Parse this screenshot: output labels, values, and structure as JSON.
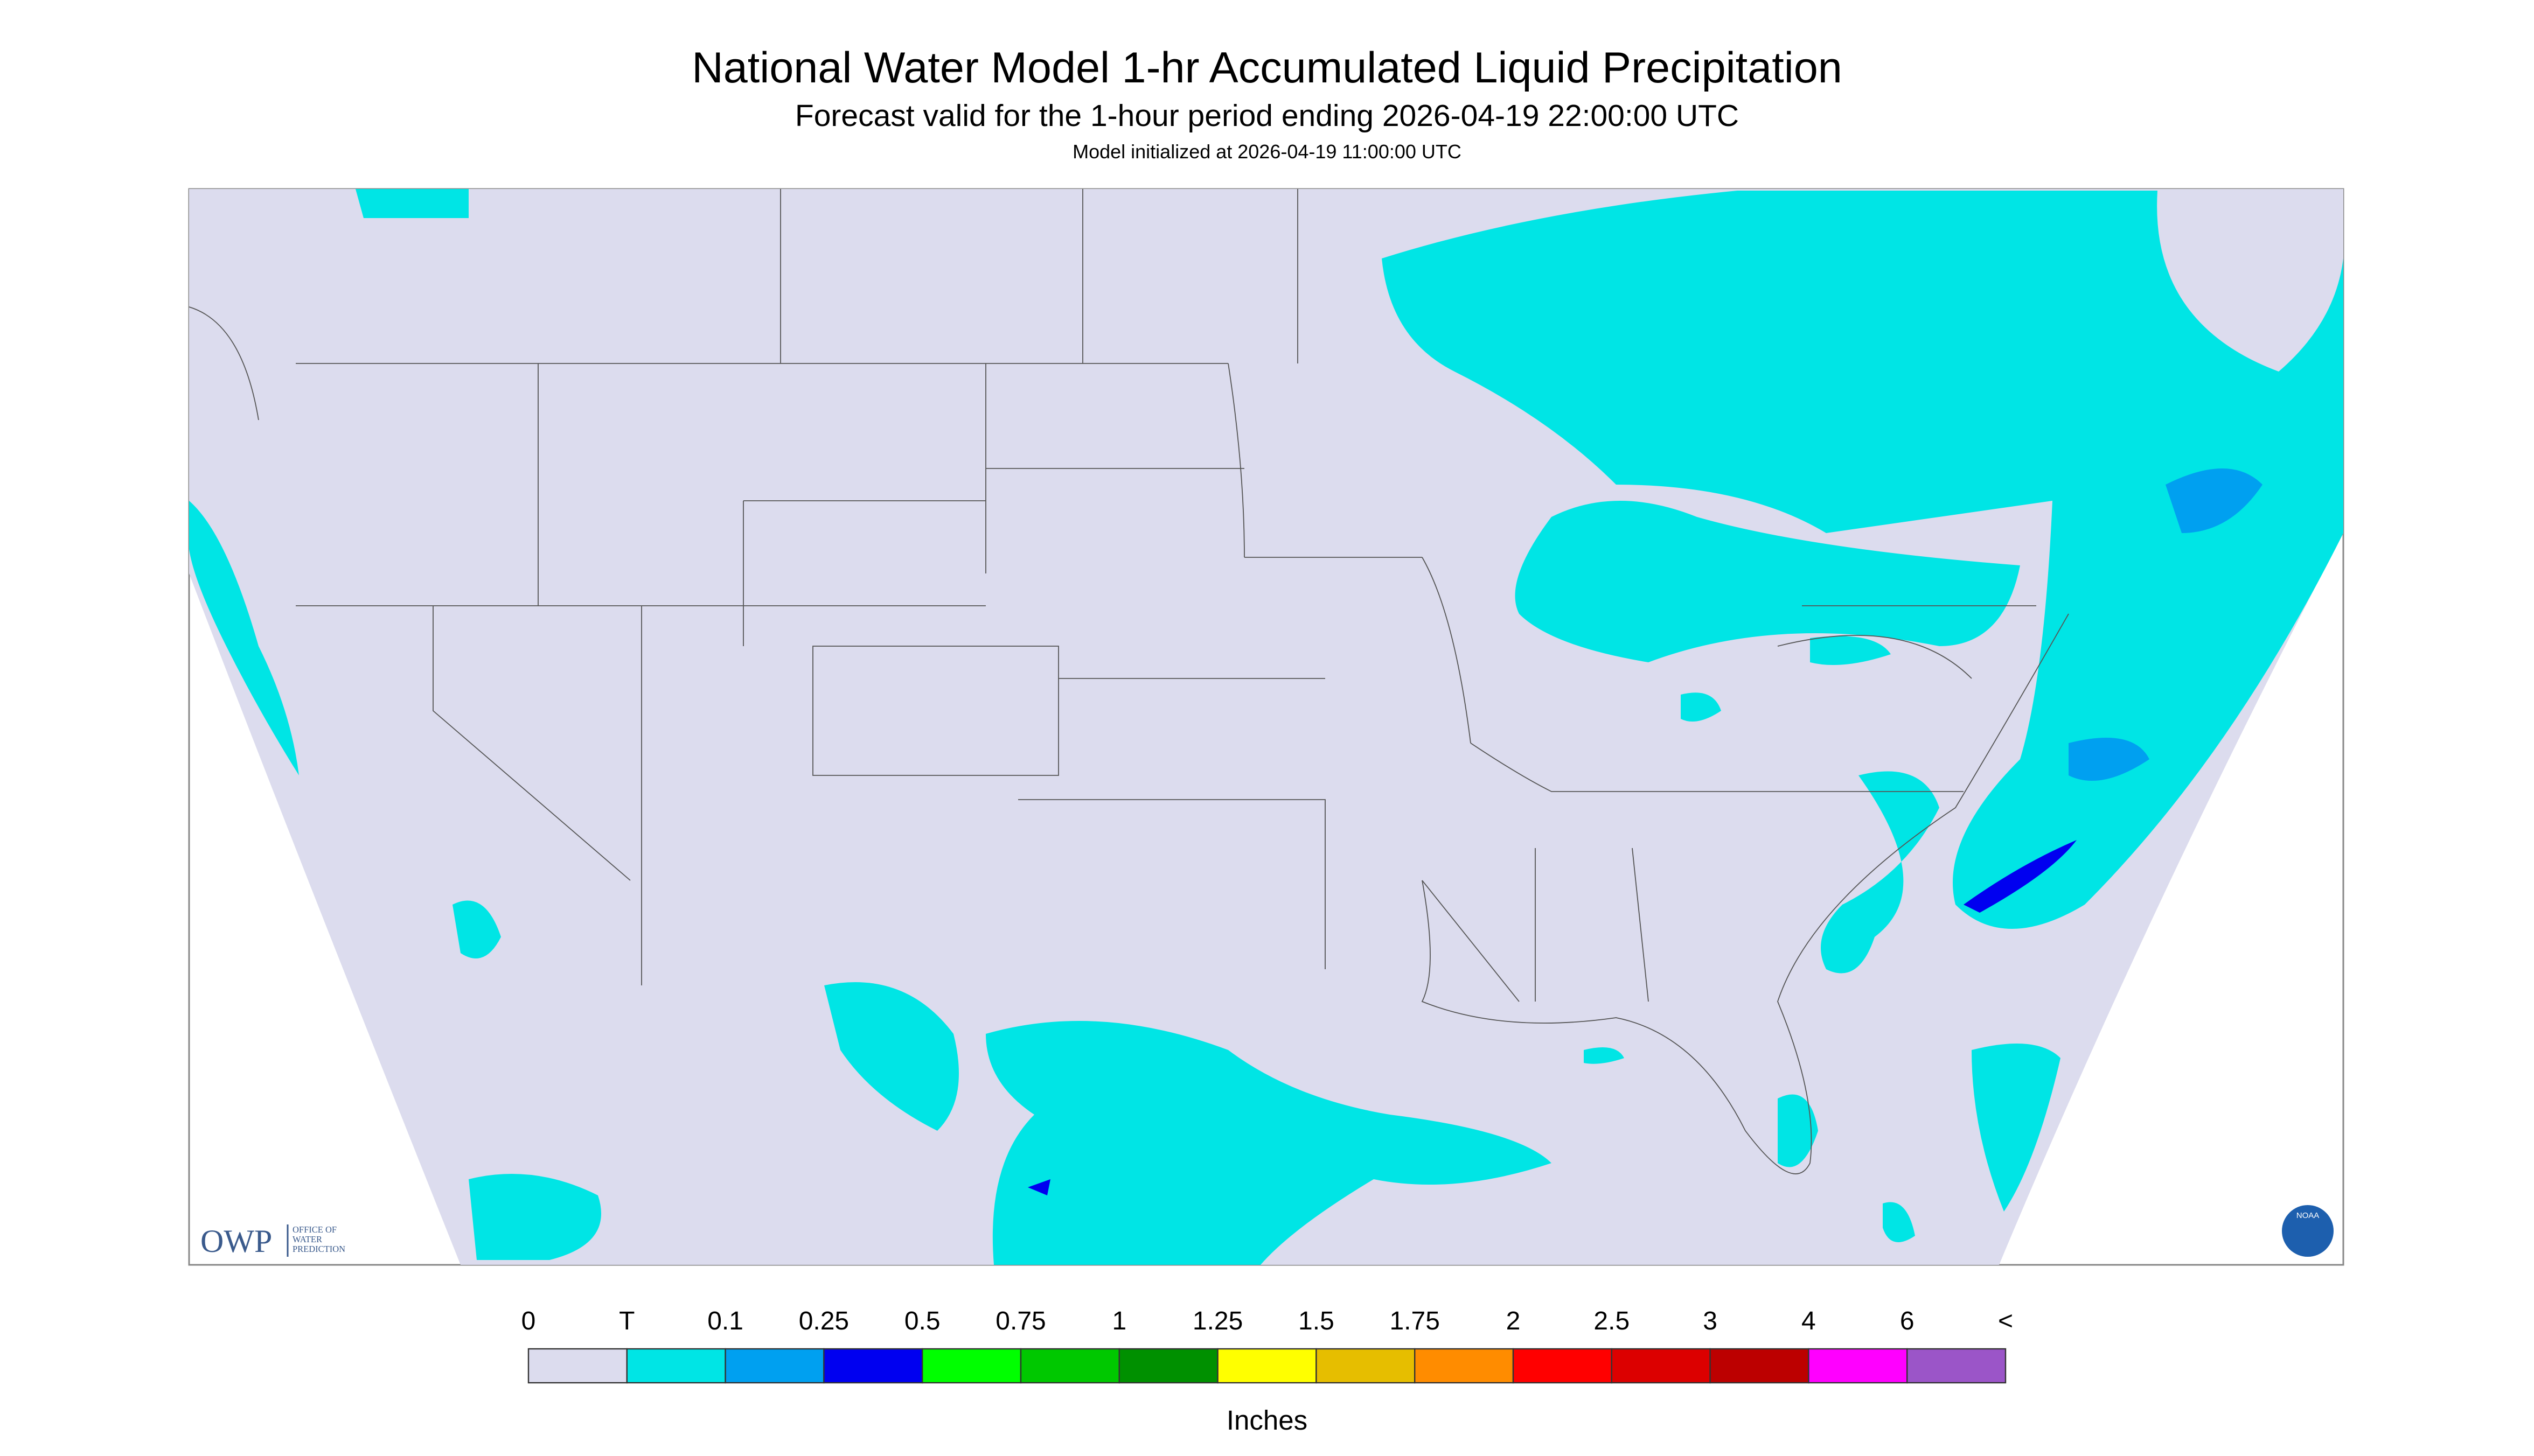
{
  "header": {
    "title": "National Water Model 1-hr Accumulated Liquid Precipitation",
    "subtitle": "Forecast valid for the 1-hour period ending 2026-04-19 22:00:00 UTC",
    "initialized": "Model initialized at 2026-04-19 11:00:00 UTC"
  },
  "legend": {
    "labels": [
      "0",
      "T",
      "0.1",
      "0.25",
      "0.5",
      "0.75",
      "1",
      "1.25",
      "1.5",
      "1.75",
      "2",
      "2.5",
      "3",
      "4",
      "6",
      "<"
    ],
    "colors": [
      "#dcdcee",
      "#00e5e5",
      "#00a0f0",
      "#0000f0",
      "#00ff00",
      "#00c800",
      "#009000",
      "#ffff00",
      "#e6be00",
      "#ff8c00",
      "#ff0000",
      "#dc0000",
      "#bc0000",
      "#ff00ff",
      "#9b55c8"
    ],
    "unit": "Inches"
  },
  "logos": {
    "owp": "OWP",
    "owp_name": [
      "OFFICE OF",
      "WATER",
      "PREDICTION"
    ],
    "noaa": "NOAA"
  }
}
